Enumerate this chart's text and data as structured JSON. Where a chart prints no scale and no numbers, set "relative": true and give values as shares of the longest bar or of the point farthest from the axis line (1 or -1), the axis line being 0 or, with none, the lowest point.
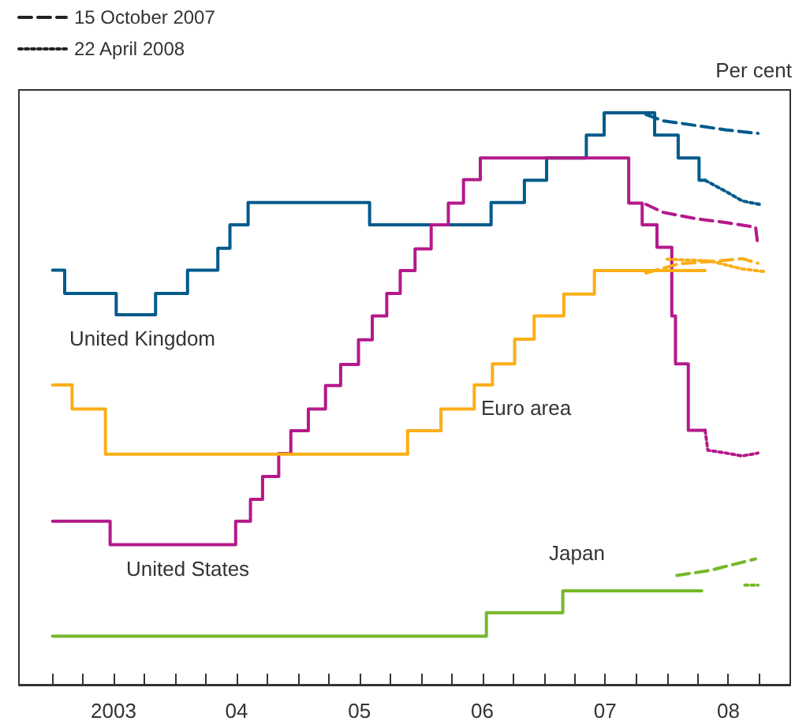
{
  "chart_data": {
    "type": "step",
    "relative": true,
    "ylabel": "Per cent",
    "legend": "top left",
    "grid": false,
    "marker": "none",
    "xlim": [
      "2002-09-23",
      "2009-01-01"
    ],
    "xticks": [
      {
        "value": "2003-01-01",
        "label": null
      },
      {
        "value": "2003-04-01",
        "label": null
      },
      {
        "value": "2003-07-01",
        "label": "2003"
      },
      {
        "value": "2003-10-01",
        "label": null
      },
      {
        "value": "2004-01-01",
        "label": null
      },
      {
        "value": "2004-04-01",
        "label": null
      },
      {
        "value": "2004-07-01",
        "label": "04"
      },
      {
        "value": "2004-10-01",
        "label": null
      },
      {
        "value": "2005-01-01",
        "label": null
      },
      {
        "value": "2005-04-01",
        "label": null
      },
      {
        "value": "2005-07-01",
        "label": "05"
      },
      {
        "value": "2005-10-01",
        "label": null
      },
      {
        "value": "2006-01-01",
        "label": null
      },
      {
        "value": "2006-04-01",
        "label": null
      },
      {
        "value": "2006-07-01",
        "label": "06"
      },
      {
        "value": "2006-10-01",
        "label": null
      },
      {
        "value": "2007-01-01",
        "label": null
      },
      {
        "value": "2007-04-01",
        "label": null
      },
      {
        "value": "2007-07-01",
        "label": "07"
      },
      {
        "value": "2007-10-01",
        "label": null
      },
      {
        "value": "2008-01-01",
        "label": null
      },
      {
        "value": "2008-04-01",
        "label": null
      },
      {
        "value": "2008-07-01",
        "label": "08"
      },
      {
        "value": "2008-10-01",
        "label": null
      }
    ],
    "series": [
      {
        "name": "15 October 2007",
        "type": "line",
        "color": "#222222",
        "line_style": "dashed"
      },
      {
        "name": "22 April 2008",
        "type": "line",
        "color": "#222222",
        "line_style": "dotted"
      },
      {
        "name": "United Kingdom",
        "color": "#005a8c",
        "line_style": "solid",
        "x": [
          "2003-01-01",
          "2003-02-06",
          "2003-07-09",
          "2003-11-03",
          "2004-02-06",
          "2004-05-06",
          "2004-06-11",
          "2004-08-04",
          "2005-07-31",
          "2006-07-27",
          "2006-11-03",
          "2007-01-08",
          "2007-05-06",
          "2007-06-28",
          "2007-11-25",
          "2008-02-03",
          "2008-04-05",
          "2008-04-23"
        ],
        "values": [
          0.725,
          0.684,
          0.647,
          0.684,
          0.725,
          0.763,
          0.804,
          0.843,
          0.804,
          0.843,
          0.882,
          0.921,
          0.961,
          1.0,
          0.961,
          0.921,
          0.882,
          0.882
        ]
      },
      {
        "name": "United States",
        "color": "#b5198a",
        "line_style": "solid",
        "x": [
          "2003-01-01",
          "2003-06-21",
          "2004-06-28",
          "2004-08-11",
          "2004-09-16",
          "2004-11-03",
          "2004-12-09",
          "2005-01-30",
          "2005-03-22",
          "2005-05-06",
          "2005-06-28",
          "2005-08-08",
          "2005-09-20",
          "2005-10-30",
          "2005-12-13",
          "2006-01-30",
          "2006-03-22",
          "2006-05-06",
          "2006-06-25",
          "2007-09-09",
          "2007-10-19",
          "2007-12-02",
          "2008-01-15",
          "2008-01-26",
          "2008-03-04",
          "2008-04-23"
        ],
        "values": [
          0.286,
          0.245,
          0.286,
          0.324,
          0.364,
          0.404,
          0.444,
          0.482,
          0.523,
          0.56,
          0.603,
          0.645,
          0.684,
          0.724,
          0.762,
          0.804,
          0.842,
          0.883,
          0.921,
          0.842,
          0.804,
          0.765,
          0.645,
          0.561,
          0.445,
          0.445
        ]
      },
      {
        "name": "Euro area",
        "color": "#fbae17",
        "line_style": "solid",
        "x": [
          "2003-01-01",
          "2003-02-28",
          "2003-06-07",
          "2005-11-21",
          "2006-02-28",
          "2006-06-07",
          "2006-07-31",
          "2006-10-05",
          "2006-12-02",
          "2007-02-28",
          "2007-05-30",
          "2008-04-23"
        ],
        "values": [
          0.524,
          0.482,
          0.403,
          0.444,
          0.482,
          0.524,
          0.561,
          0.604,
          0.645,
          0.683,
          0.724,
          0.724
        ]
      },
      {
        "name": "Japan",
        "color": "#76b82a",
        "line_style": "solid",
        "x": [
          "2003-01-01",
          "2006-07-13",
          "2007-02-25",
          "2008-04-13"
        ],
        "values": [
          0.085,
          0.126,
          0.164,
          0.164
        ]
      },
      {
        "type": "line",
        "color": "#005a8c",
        "line_style": "dashed",
        "x": [
          "2007-10-30",
          "2007-12-20",
          "2008-03-25",
          "2008-06-25",
          "2008-09-27"
        ],
        "values": [
          0.997,
          0.986,
          0.978,
          0.97,
          0.964
        ]
      },
      {
        "type": "line",
        "color": "#005a8c",
        "line_style": "dotted",
        "x": [
          "2008-04-23",
          "2008-06-25",
          "2008-08-11",
          "2008-10-01"
        ],
        "values": [
          0.882,
          0.862,
          0.846,
          0.84
        ]
      },
      {
        "type": "line",
        "color": "#b5198a",
        "line_style": "dashed",
        "x": [
          "2007-10-30",
          "2007-12-20",
          "2008-03-25",
          "2008-06-25",
          "2008-09-20",
          "2008-09-27"
        ],
        "values": [
          0.84,
          0.826,
          0.815,
          0.808,
          0.8,
          0.767
        ]
      },
      {
        "type": "line",
        "color": "#b5198a",
        "line_style": "dotted",
        "x": [
          "2008-04-23",
          "2008-05-01",
          "2008-06-25",
          "2008-08-11",
          "2008-09-27"
        ],
        "values": [
          0.445,
          0.41,
          0.405,
          0.4,
          0.405
        ]
      },
      {
        "type": "line",
        "color": "#fbae17",
        "line_style": "dashed",
        "x": [
          "2007-10-30",
          "2008-02-06",
          "2008-06-03",
          "2008-08-11",
          "2008-09-27"
        ],
        "values": [
          0.72,
          0.736,
          0.741,
          0.745,
          0.737
        ]
      },
      {
        "type": "line",
        "color": "#fbae17",
        "line_style": "dotted",
        "x": [
          "2008-01-01",
          "2008-05-08",
          "2008-08-11",
          "2008-10-23"
        ],
        "values": [
          0.744,
          0.741,
          0.727,
          0.722
        ]
      },
      {
        "type": "line",
        "color": "#76b82a",
        "line_style": "dashed",
        "x": [
          "2008-01-30",
          "2008-05-08",
          "2008-09-20"
        ],
        "values": [
          0.191,
          0.2,
          0.22
        ]
      },
      {
        "type": "line",
        "color": "#76b82a",
        "line_style": "dotted",
        "x": [
          "2008-08-19",
          "2008-09-27"
        ],
        "values": [
          0.174,
          0.174
        ]
      }
    ]
  }
}
